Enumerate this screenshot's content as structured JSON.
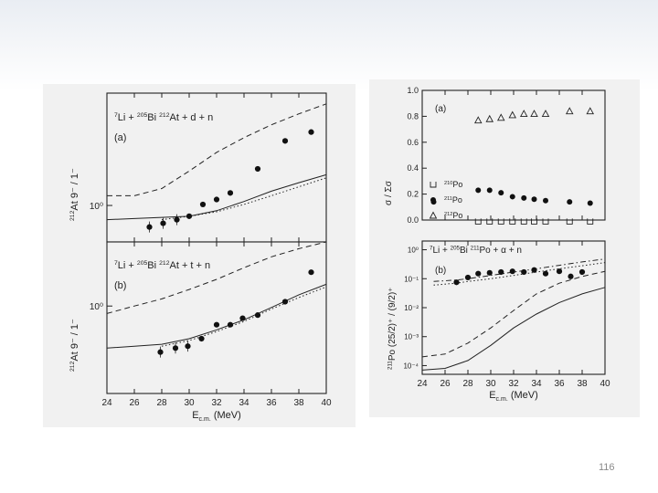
{
  "slide": {
    "page_number": "116"
  },
  "chart_data": [
    {
      "id": "left-a",
      "type": "scatter",
      "panel": "(a)",
      "reaction": [
        "7",
        "Li + ",
        "205",
        "Bi ",
        "212",
        "At + d + n"
      ],
      "ylabel": [
        "212",
        "At   9⁻ / 1⁻"
      ],
      "ylog": true,
      "ylim": [
        0.7,
        3.0
      ],
      "yticks": [
        {
          "value": 1.0,
          "label": "10⁰"
        }
      ],
      "xlim": [
        24,
        40
      ],
      "points": [
        [
          27.1,
          0.81
        ],
        [
          28.1,
          0.84
        ],
        [
          29.1,
          0.87
        ],
        [
          30.0,
          0.9
        ],
        [
          31.0,
          1.01
        ],
        [
          32.0,
          1.06
        ],
        [
          33.0,
          1.13
        ],
        [
          35.0,
          1.43
        ],
        [
          37.0,
          1.88
        ],
        [
          38.9,
          2.05
        ]
      ],
      "lines": [
        {
          "style": "dashed",
          "x": [
            24,
            26,
            28,
            30,
            32,
            34,
            36,
            38,
            40
          ],
          "y": [
            1.1,
            1.1,
            1.18,
            1.4,
            1.68,
            1.94,
            2.2,
            2.45,
            2.7
          ]
        },
        {
          "style": "solid",
          "x": [
            24,
            26,
            28,
            30,
            32,
            34,
            36,
            38,
            40
          ],
          "y": [
            0.87,
            0.88,
            0.89,
            0.9,
            0.95,
            1.04,
            1.15,
            1.25,
            1.35
          ]
        },
        {
          "style": "dotted",
          "x": [
            28,
            30,
            32,
            34,
            36,
            38,
            40
          ],
          "y": [
            0.87,
            0.9,
            0.94,
            1.01,
            1.1,
            1.2,
            1.31
          ]
        }
      ]
    },
    {
      "id": "left-b",
      "type": "scatter",
      "panel": "(b)",
      "reaction": [
        "7",
        "Li + ",
        "205",
        "Bi ",
        "212",
        "At + t + n"
      ],
      "ylabel": [
        "212",
        "At   9⁻ / 1⁻"
      ],
      "ylog": true,
      "ylim": [
        0.55,
        1.55
      ],
      "yticks": [
        {
          "value": 1.0,
          "label": "10⁰"
        }
      ],
      "xlim": [
        24,
        40
      ],
      "xticks": [
        24,
        26,
        28,
        30,
        32,
        34,
        36,
        38,
        40
      ],
      "xlabel": "E",
      "xlabel_sub": "c.m.",
      "xlabel_unit": " (MeV)",
      "points": [
        [
          27.9,
          0.73
        ],
        [
          29.0,
          0.75
        ],
        [
          29.9,
          0.76
        ],
        [
          30.9,
          0.8
        ],
        [
          32.0,
          0.88
        ],
        [
          33.0,
          0.88
        ],
        [
          33.9,
          0.92
        ],
        [
          35.0,
          0.94
        ],
        [
          37.0,
          1.03
        ],
        [
          38.9,
          1.26
        ]
      ],
      "lines": [
        {
          "style": "dashed",
          "x": [
            24,
            26,
            28,
            30,
            32,
            34,
            36,
            38,
            40
          ],
          "y": [
            0.95,
            1.0,
            1.05,
            1.12,
            1.2,
            1.3,
            1.4,
            1.48,
            1.55
          ]
        },
        {
          "style": "solid",
          "x": [
            24,
            26,
            28,
            30,
            32,
            34,
            36,
            38,
            40
          ],
          "y": [
            0.75,
            0.76,
            0.77,
            0.8,
            0.85,
            0.91,
            0.99,
            1.08,
            1.16
          ]
        },
        {
          "style": "dotted",
          "x": [
            28,
            30,
            32,
            34,
            36,
            38,
            40
          ],
          "y": [
            0.76,
            0.79,
            0.84,
            0.9,
            0.98,
            1.06,
            1.14
          ]
        }
      ]
    },
    {
      "id": "right-a",
      "type": "scatter",
      "panel": "(a)",
      "ylabel": "σ   / Σσ",
      "ylabel_sub1": "xn",
      "ylabel_sub2": "xn",
      "ylim": [
        0.0,
        1.0
      ],
      "yticks": [
        0.0,
        0.2,
        0.4,
        0.6,
        0.8,
        1.0
      ],
      "xlim": [
        24,
        40
      ],
      "legend": [
        {
          "marker": "bracket",
          "label": [
            "210",
            "Po"
          ]
        },
        {
          "marker": "circle",
          "label": [
            "211",
            "Po"
          ]
        },
        {
          "marker": "triangle",
          "label": [
            "212",
            "Po"
          ]
        }
      ],
      "series": [
        {
          "marker": "triangle",
          "points": [
            [
              28.9,
              0.77
            ],
            [
              29.9,
              0.78
            ],
            [
              30.9,
              0.79
            ],
            [
              31.9,
              0.81
            ],
            [
              32.9,
              0.82
            ],
            [
              33.8,
              0.82
            ],
            [
              34.8,
              0.82
            ],
            [
              36.9,
              0.84
            ],
            [
              38.7,
              0.84
            ]
          ]
        },
        {
          "marker": "circle",
          "points": [
            [
              25.0,
              0.14
            ],
            [
              28.9,
              0.23
            ],
            [
              29.9,
              0.23
            ],
            [
              30.9,
              0.21
            ],
            [
              31.9,
              0.18
            ],
            [
              32.9,
              0.17
            ],
            [
              33.8,
              0.16
            ],
            [
              34.8,
              0.15
            ],
            [
              36.9,
              0.14
            ],
            [
              38.7,
              0.13
            ]
          ]
        },
        {
          "marker": "bracket",
          "points": [
            [
              28.9,
              -0.01
            ],
            [
              29.9,
              -0.01
            ],
            [
              30.9,
              -0.01
            ],
            [
              31.9,
              -0.01
            ],
            [
              32.9,
              -0.01
            ],
            [
              33.8,
              -0.01
            ],
            [
              34.8,
              -0.01
            ],
            [
              36.9,
              -0.01
            ],
            [
              38.7,
              -0.01
            ]
          ]
        }
      ]
    },
    {
      "id": "right-b",
      "type": "scatter",
      "panel": "(b)",
      "reaction": [
        "7",
        "Li + ",
        "205",
        "Bi ",
        "211",
        "Po + α + n"
      ],
      "ylabel": [
        "211",
        "Po   (25/2)⁺ / (9/2)⁺"
      ],
      "ylog": true,
      "ylim": [
        5e-05,
        2.0
      ],
      "yticks": [
        {
          "value": 0.0001,
          "label": "10⁻⁴"
        },
        {
          "value": 0.001,
          "label": "10⁻³"
        },
        {
          "value": 0.01,
          "label": "10⁻²"
        },
        {
          "value": 0.1,
          "label": "10⁻¹"
        },
        {
          "value": 1,
          "label": "10⁰"
        }
      ],
      "xlim": [
        24,
        40
      ],
      "xticks": [
        24,
        26,
        28,
        30,
        32,
        34,
        36,
        38,
        40
      ],
      "xlabel": "E",
      "xlabel_sub": "c.m.",
      "xlabel_unit": " (MeV)",
      "points": [
        [
          27.0,
          0.075
        ],
        [
          28.0,
          0.11
        ],
        [
          28.9,
          0.15
        ],
        [
          29.9,
          0.16
        ],
        [
          30.9,
          0.17
        ],
        [
          31.9,
          0.18
        ],
        [
          32.9,
          0.17
        ],
        [
          33.8,
          0.2
        ],
        [
          34.8,
          0.15
        ],
        [
          36.0,
          0.18
        ],
        [
          37.0,
          0.12
        ],
        [
          38.0,
          0.17
        ]
      ],
      "lines": [
        {
          "style": "dashdot",
          "x": [
            25,
            26,
            27,
            28,
            30,
            32,
            34,
            36,
            38,
            40
          ],
          "y": [
            0.08,
            0.085,
            0.09,
            0.1,
            0.13,
            0.17,
            0.22,
            0.29,
            0.38,
            0.48
          ]
        },
        {
          "style": "dotted",
          "x": [
            25,
            26,
            27,
            28,
            30,
            32,
            34,
            36,
            38,
            40
          ],
          "y": [
            0.06,
            0.065,
            0.07,
            0.08,
            0.1,
            0.13,
            0.17,
            0.22,
            0.28,
            0.36
          ]
        },
        {
          "style": "dashed",
          "x": [
            24,
            26,
            28,
            30,
            32,
            34,
            36,
            38,
            40
          ],
          "y": [
            0.0002,
            0.00025,
            0.0006,
            0.002,
            0.008,
            0.03,
            0.07,
            0.12,
            0.18
          ]
        },
        {
          "style": "solid",
          "x": [
            24,
            26,
            28,
            30,
            32,
            34,
            36,
            38,
            40
          ],
          "y": [
            7e-05,
            8e-05,
            0.00015,
            0.0005,
            0.002,
            0.006,
            0.015,
            0.03,
            0.05
          ]
        }
      ]
    }
  ]
}
